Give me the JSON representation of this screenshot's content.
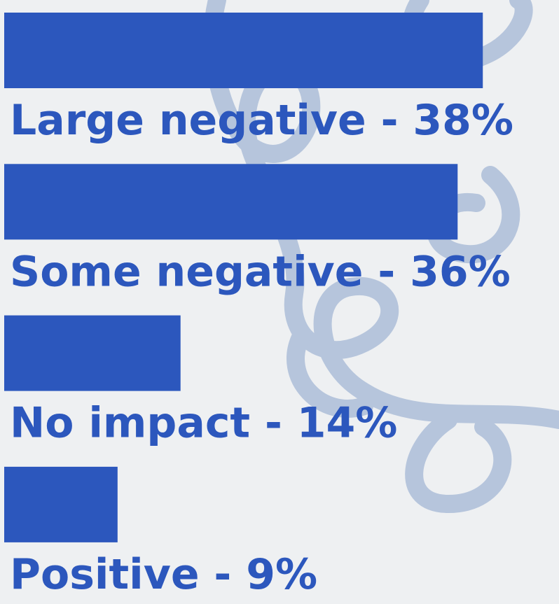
{
  "chart_data": {
    "type": "bar",
    "categories": [
      "Large negative - 38%",
      "Some negative - 36%",
      "No impact - 14%",
      "Positive - 9%"
    ],
    "values": [
      38,
      36,
      14,
      9
    ],
    "color": "#2c57bd"
  }
}
